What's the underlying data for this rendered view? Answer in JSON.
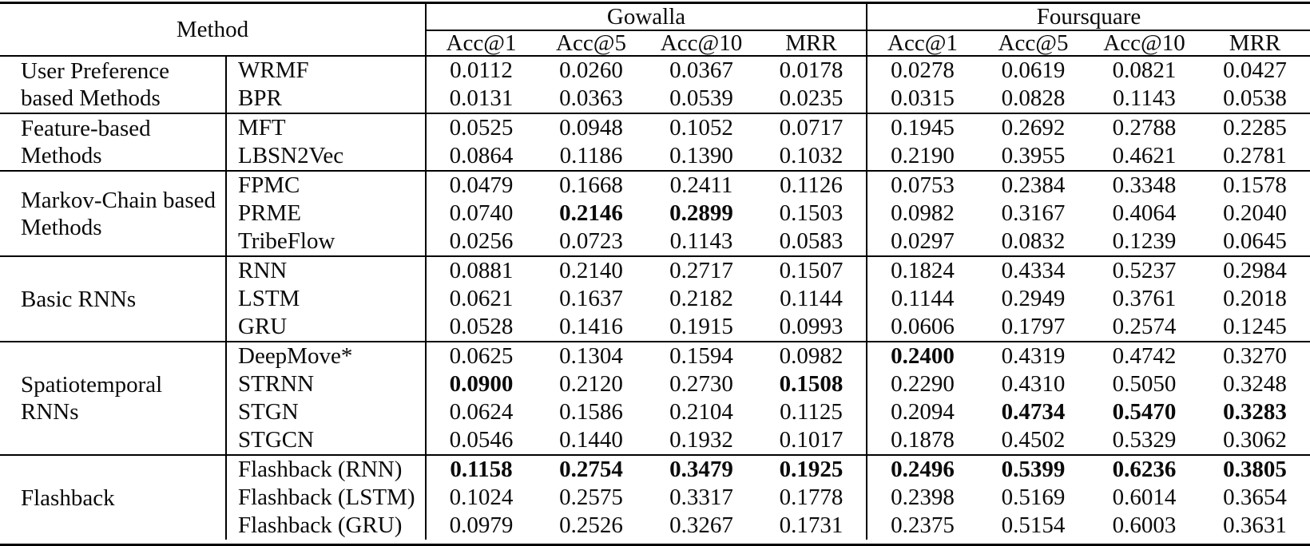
{
  "table": {
    "method_header": "Method",
    "datasets": [
      {
        "name": "Gowalla"
      },
      {
        "name": "Foursquare"
      }
    ],
    "metrics": [
      "Acc@1",
      "Acc@5",
      "Acc@10",
      "MRR"
    ],
    "groups": [
      {
        "category": "User Preference based Methods",
        "rows": [
          {
            "method": "WRMF",
            "gowalla": [
              "0.0112",
              "0.0260",
              "0.0367",
              "0.0178"
            ],
            "gowalla_bold": [
              false,
              false,
              false,
              false
            ],
            "foursquare": [
              "0.0278",
              "0.0619",
              "0.0821",
              "0.0427"
            ],
            "foursquare_bold": [
              false,
              false,
              false,
              false
            ]
          },
          {
            "method": "BPR",
            "gowalla": [
              "0.0131",
              "0.0363",
              "0.0539",
              "0.0235"
            ],
            "gowalla_bold": [
              false,
              false,
              false,
              false
            ],
            "foursquare": [
              "0.0315",
              "0.0828",
              "0.1143",
              "0.0538"
            ],
            "foursquare_bold": [
              false,
              false,
              false,
              false
            ]
          }
        ]
      },
      {
        "category": "Feature-based Methods",
        "rows": [
          {
            "method": "MFT",
            "gowalla": [
              "0.0525",
              "0.0948",
              "0.1052",
              "0.0717"
            ],
            "gowalla_bold": [
              false,
              false,
              false,
              false
            ],
            "foursquare": [
              "0.1945",
              "0.2692",
              "0.2788",
              "0.2285"
            ],
            "foursquare_bold": [
              false,
              false,
              false,
              false
            ]
          },
          {
            "method": "LBSN2Vec",
            "gowalla": [
              "0.0864",
              "0.1186",
              "0.1390",
              "0.1032"
            ],
            "gowalla_bold": [
              false,
              false,
              false,
              false
            ],
            "foursquare": [
              "0.2190",
              "0.3955",
              "0.4621",
              "0.2781"
            ],
            "foursquare_bold": [
              false,
              false,
              false,
              false
            ]
          }
        ]
      },
      {
        "category": "Markov-Chain based Methods",
        "rows": [
          {
            "method": "FPMC",
            "gowalla": [
              "0.0479",
              "0.1668",
              "0.2411",
              "0.1126"
            ],
            "gowalla_bold": [
              false,
              false,
              false,
              false
            ],
            "foursquare": [
              "0.0753",
              "0.2384",
              "0.3348",
              "0.1578"
            ],
            "foursquare_bold": [
              false,
              false,
              false,
              false
            ]
          },
          {
            "method": "PRME",
            "gowalla": [
              "0.0740",
              "0.2146",
              "0.2899",
              "0.1503"
            ],
            "gowalla_bold": [
              false,
              true,
              true,
              false
            ],
            "foursquare": [
              "0.0982",
              "0.3167",
              "0.4064",
              "0.2040"
            ],
            "foursquare_bold": [
              false,
              false,
              false,
              false
            ]
          },
          {
            "method": "TribeFlow",
            "gowalla": [
              "0.0256",
              "0.0723",
              "0.1143",
              "0.0583"
            ],
            "gowalla_bold": [
              false,
              false,
              false,
              false
            ],
            "foursquare": [
              "0.0297",
              "0.0832",
              "0.1239",
              "0.0645"
            ],
            "foursquare_bold": [
              false,
              false,
              false,
              false
            ]
          }
        ]
      },
      {
        "category": "Basic RNNs",
        "rows": [
          {
            "method": "RNN",
            "gowalla": [
              "0.0881",
              "0.2140",
              "0.2717",
              "0.1507"
            ],
            "gowalla_bold": [
              false,
              false,
              false,
              false
            ],
            "foursquare": [
              "0.1824",
              "0.4334",
              "0.5237",
              "0.2984"
            ],
            "foursquare_bold": [
              false,
              false,
              false,
              false
            ]
          },
          {
            "method": "LSTM",
            "gowalla": [
              "0.0621",
              "0.1637",
              "0.2182",
              "0.1144"
            ],
            "gowalla_bold": [
              false,
              false,
              false,
              false
            ],
            "foursquare": [
              "0.1144",
              "0.2949",
              "0.3761",
              "0.2018"
            ],
            "foursquare_bold": [
              false,
              false,
              false,
              false
            ]
          },
          {
            "method": "GRU",
            "gowalla": [
              "0.0528",
              "0.1416",
              "0.1915",
              "0.0993"
            ],
            "gowalla_bold": [
              false,
              false,
              false,
              false
            ],
            "foursquare": [
              "0.0606",
              "0.1797",
              "0.2574",
              "0.1245"
            ],
            "foursquare_bold": [
              false,
              false,
              false,
              false
            ]
          }
        ]
      },
      {
        "category": "Spatiotemporal RNNs",
        "rows": [
          {
            "method": "DeepMove*",
            "gowalla": [
              "0.0625",
              "0.1304",
              "0.1594",
              "0.0982"
            ],
            "gowalla_bold": [
              false,
              false,
              false,
              false
            ],
            "foursquare": [
              "0.2400",
              "0.4319",
              "0.4742",
              "0.3270"
            ],
            "foursquare_bold": [
              true,
              false,
              false,
              false
            ]
          },
          {
            "method": "STRNN",
            "gowalla": [
              "0.0900",
              "0.2120",
              "0.2730",
              "0.1508"
            ],
            "gowalla_bold": [
              true,
              false,
              false,
              true
            ],
            "foursquare": [
              "0.2290",
              "0.4310",
              "0.5050",
              "0.3248"
            ],
            "foursquare_bold": [
              false,
              false,
              false,
              false
            ]
          },
          {
            "method": "STGN",
            "gowalla": [
              "0.0624",
              "0.1586",
              "0.2104",
              "0.1125"
            ],
            "gowalla_bold": [
              false,
              false,
              false,
              false
            ],
            "foursquare": [
              "0.2094",
              "0.4734",
              "0.5470",
              "0.3283"
            ],
            "foursquare_bold": [
              false,
              true,
              true,
              true
            ]
          },
          {
            "method": "STGCN",
            "gowalla": [
              "0.0546",
              "0.1440",
              "0.1932",
              "0.1017"
            ],
            "gowalla_bold": [
              false,
              false,
              false,
              false
            ],
            "foursquare": [
              "0.1878",
              "0.4502",
              "0.5329",
              "0.3062"
            ],
            "foursquare_bold": [
              false,
              false,
              false,
              false
            ]
          }
        ]
      },
      {
        "category": "Flashback",
        "rows": [
          {
            "method": "Flashback (RNN)",
            "gowalla": [
              "0.1158",
              "0.2754",
              "0.3479",
              "0.1925"
            ],
            "gowalla_bold": [
              true,
              true,
              true,
              true
            ],
            "foursquare": [
              "0.2496",
              "0.5399",
              "0.6236",
              "0.3805"
            ],
            "foursquare_bold": [
              true,
              true,
              true,
              true
            ]
          },
          {
            "method": "Flashback (LSTM)",
            "gowalla": [
              "0.1024",
              "0.2575",
              "0.3317",
              "0.1778"
            ],
            "gowalla_bold": [
              false,
              false,
              false,
              false
            ],
            "foursquare": [
              "0.2398",
              "0.5169",
              "0.6014",
              "0.3654"
            ],
            "foursquare_bold": [
              false,
              false,
              false,
              false
            ]
          },
          {
            "method": "Flashback (GRU)",
            "gowalla": [
              "0.0979",
              "0.2526",
              "0.3267",
              "0.1731"
            ],
            "gowalla_bold": [
              false,
              false,
              false,
              false
            ],
            "foursquare": [
              "0.2375",
              "0.5154",
              "0.6003",
              "0.3631"
            ],
            "foursquare_bold": [
              false,
              false,
              false,
              false
            ]
          }
        ]
      }
    ]
  }
}
